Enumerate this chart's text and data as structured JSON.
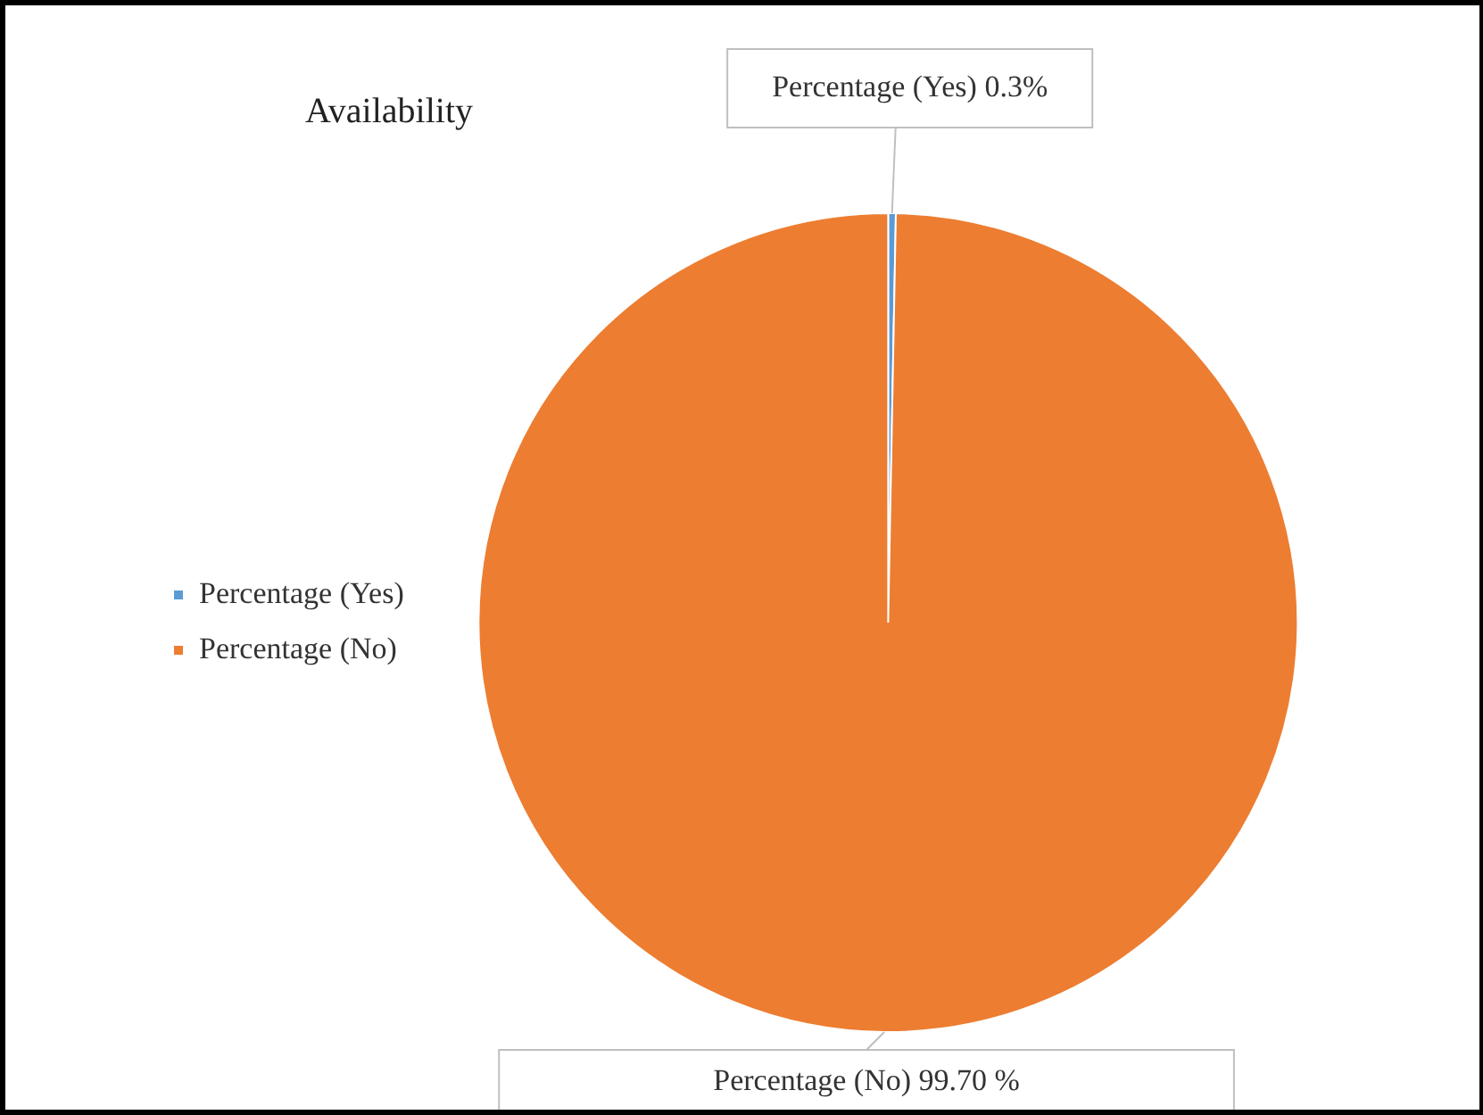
{
  "chart_data": {
    "type": "pie",
    "title": "Availability",
    "categories": [
      "Percentage (Yes)",
      "Percentage (No)"
    ],
    "values": [
      0.3,
      99.7
    ],
    "colors": [
      "#5b9bd5",
      "#ed7d31"
    ],
    "value_labels": [
      "Percentage (Yes) 0.3%",
      "Percentage (No) 99.70 %"
    ],
    "legend": "left"
  }
}
